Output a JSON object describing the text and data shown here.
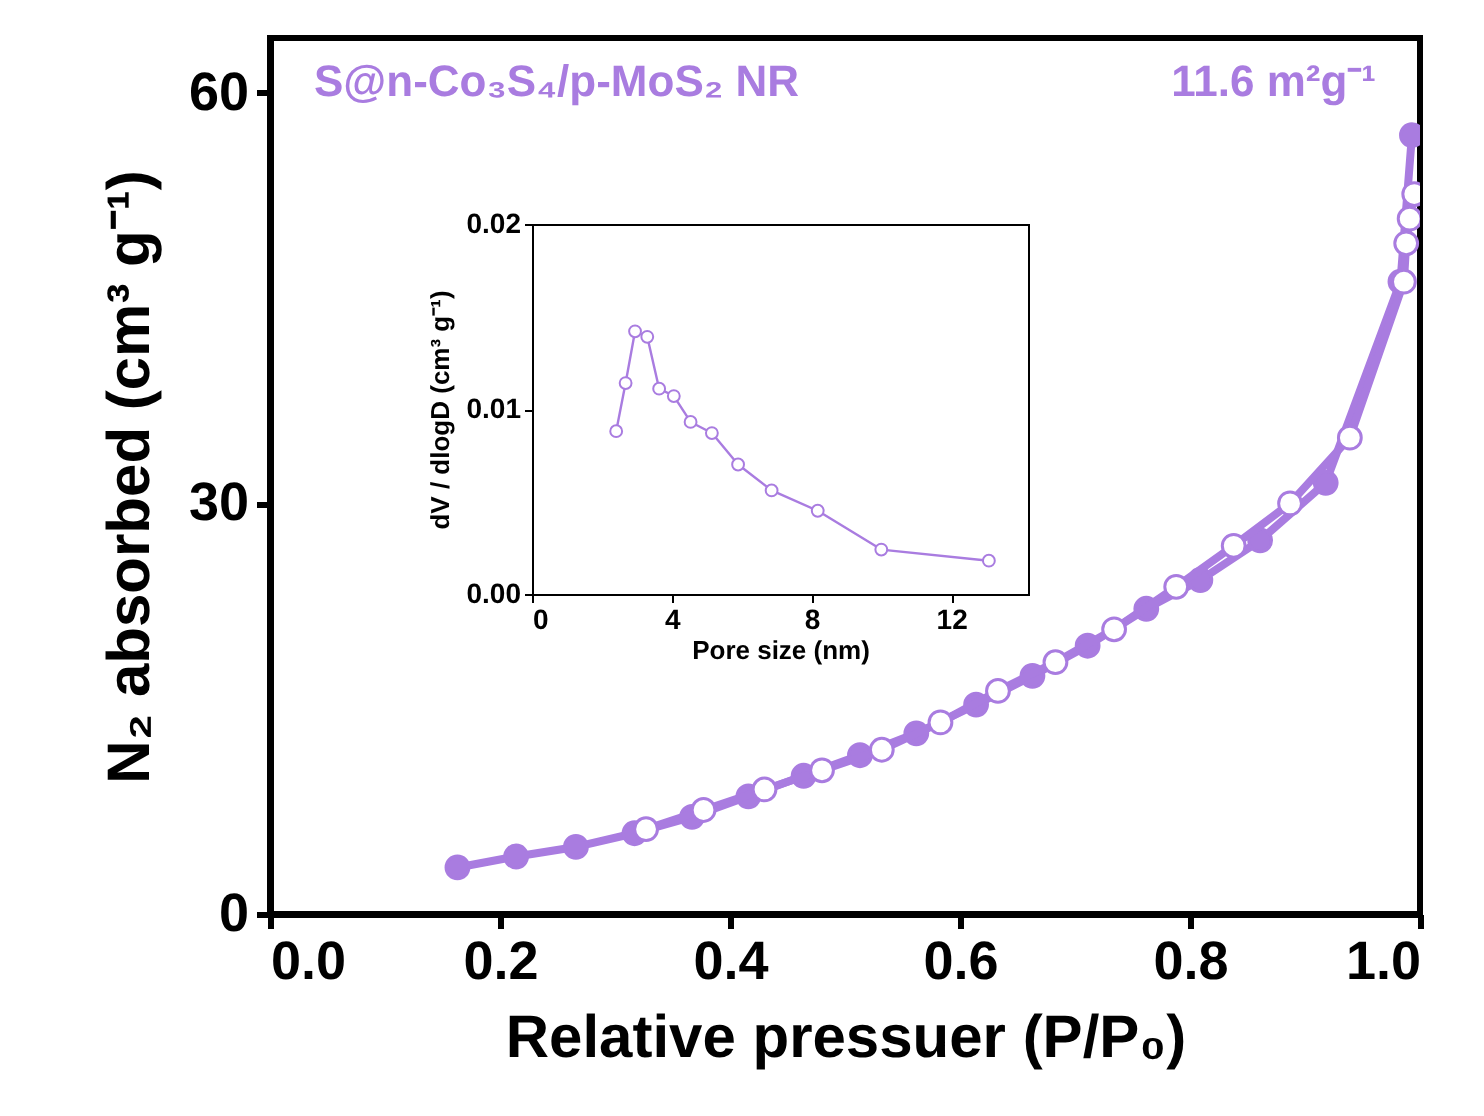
{
  "chart_data": [
    {
      "type": "line",
      "xlabel": "Relative pressuer (P/P₀)",
      "ylabel": "N₂ absorbed (cm³ g⁻¹)",
      "annotations": [
        "S@n-Co₃S₄/p-MoS₂ NR",
        "11.6 m²g⁻¹"
      ],
      "marker": "circle",
      "xlim": [
        0,
        1
      ],
      "ylim": [
        0,
        64
      ],
      "xticks": [
        {
          "value": 0,
          "label": "0.0"
        },
        {
          "value": 0.2,
          "label": "0.2"
        },
        {
          "value": 0.4,
          "label": "0.4"
        },
        {
          "value": 0.6,
          "label": "0.6"
        },
        {
          "value": 0.8,
          "label": "0.8"
        },
        {
          "value": 1,
          "label": "1.0"
        }
      ],
      "yticks": [
        0,
        30,
        60
      ],
      "series": [
        {
          "color": "#a97ce0",
          "x": [
            0.163,
            0.214,
            0.266,
            0.317,
            0.367,
            0.416,
            0.464,
            0.513,
            0.562,
            0.614,
            0.663,
            0.711,
            0.762,
            0.809,
            0.861,
            0.918,
            0.983,
            0.993
          ],
          "values": [
            3.4,
            4.2,
            4.9,
            5.9,
            7.1,
            8.6,
            10.1,
            11.6,
            13.2,
            15.3,
            17.4,
            19.6,
            22.3,
            24.4,
            27.3,
            31.5,
            46.2,
            56.9
          ]
        },
        {
          "color": "#a97ce0",
          "x": [
            0.327,
            0.377,
            0.43,
            0.48,
            0.532,
            0.583,
            0.633,
            0.683,
            0.734,
            0.788,
            0.838,
            0.887,
            0.939,
            0.986,
            0.988,
            0.991,
            0.995
          ],
          "values": [
            6.2,
            7.6,
            9.1,
            10.5,
            12.0,
            14.0,
            16.3,
            18.4,
            20.8,
            23.9,
            26.9,
            30.0,
            34.8,
            46.2,
            49.0,
            50.8,
            52.6
          ]
        }
      ]
    },
    {
      "type": "line",
      "xlabel": "Pore size  (nm)",
      "ylabel": "dV / dlogD (cm³ g⁻¹)",
      "marker": "circle",
      "xlim": [
        0,
        14.2
      ],
      "ylim": [
        0,
        0.02
      ],
      "xticks": [
        0,
        4,
        8,
        12
      ],
      "yticks": [
        {
          "value": 0,
          "label": "0.00"
        },
        {
          "value": 0.01,
          "label": "0.01"
        },
        {
          "value": 0.02,
          "label": "0.02"
        }
      ],
      "series": [
        {
          "color": "#a97ce0",
          "x": [
            2.41,
            2.68,
            2.95,
            3.3,
            3.64,
            4.06,
            4.54,
            5.15,
            5.9,
            6.86,
            8.18,
            10.0,
            13.08
          ],
          "values": [
            0.0088,
            0.0114,
            0.0142,
            0.0139,
            0.0111,
            0.0107,
            0.0093,
            0.0087,
            0.007,
            0.0056,
            0.0045,
            0.0024,
            0.0018
          ]
        }
      ]
    }
  ]
}
